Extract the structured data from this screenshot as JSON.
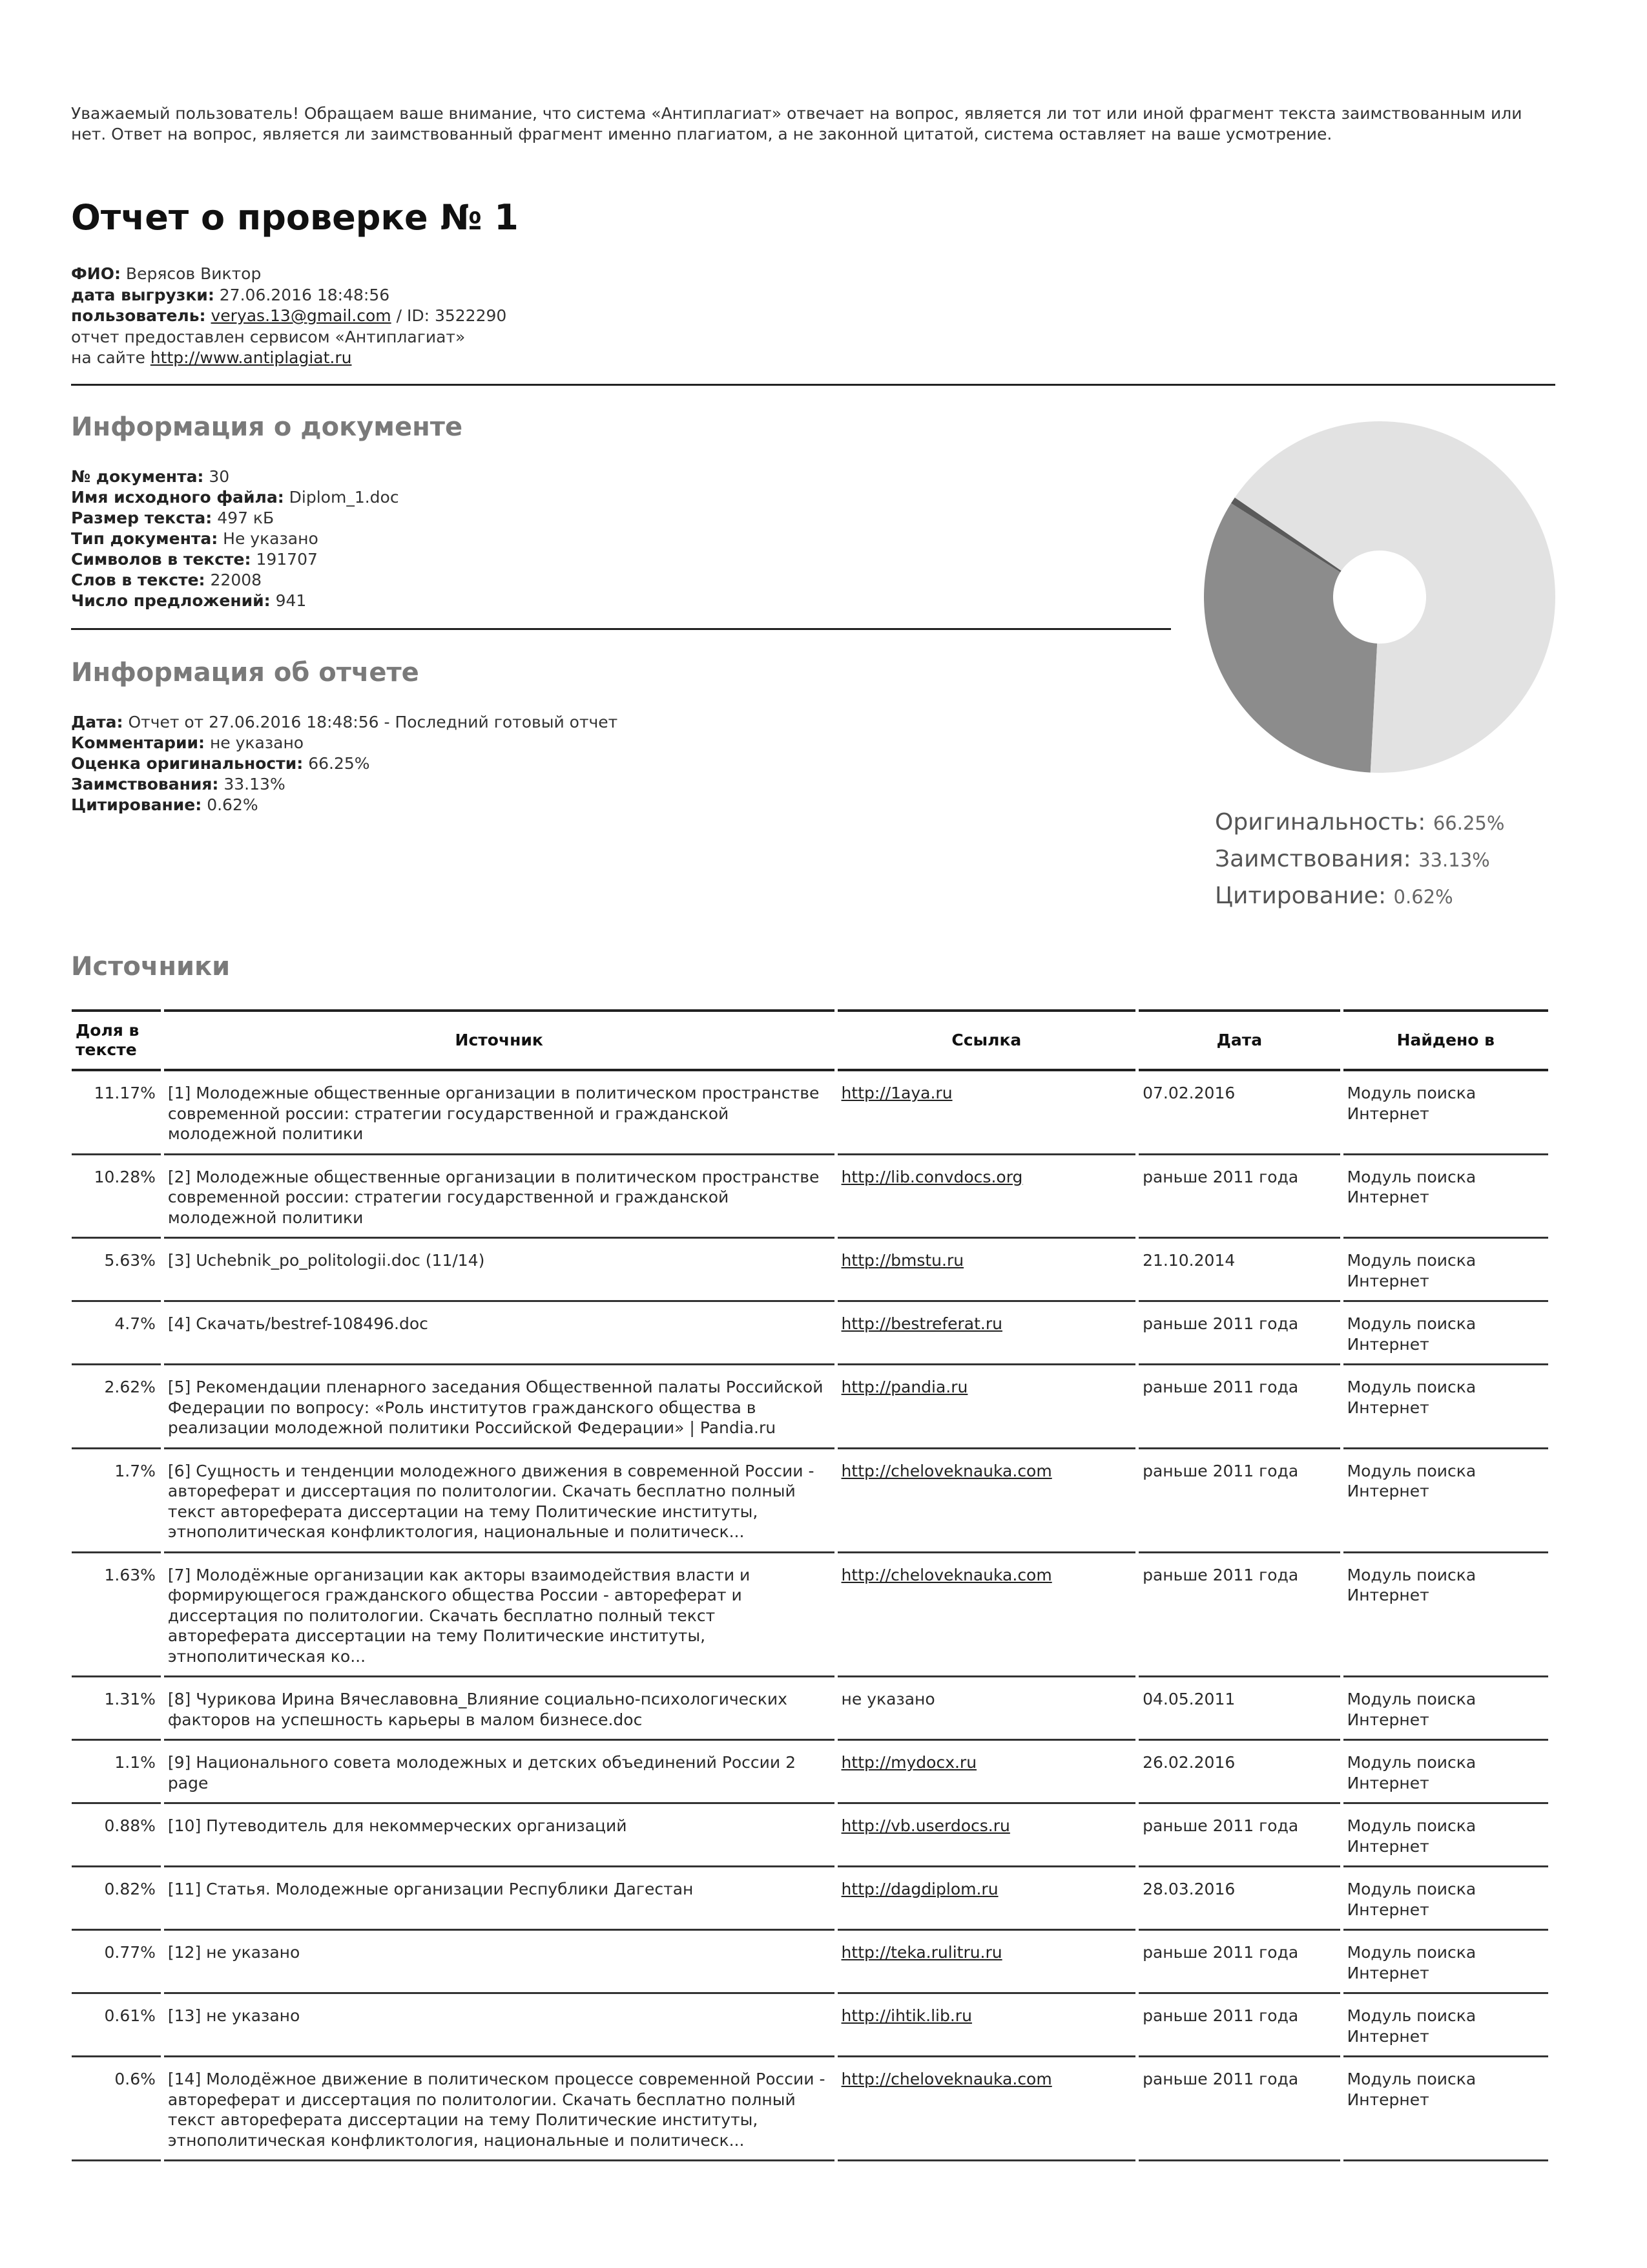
{
  "notice": "Уважаемый пользователь! Обращаем ваше внимание, что система «Антиплагиат» отвечает на вопрос, является ли тот или иной фрагмент текста заимствованным или нет. Ответ на вопрос, является ли заимствованный фрагмент именно плагиатом, а не законной цитатой, система оставляет на ваше усмотрение.",
  "title": "Отчет о проверке № 1",
  "meta": {
    "fio_label": "ФИО:",
    "fio": "Верясов Виктор",
    "upload_label": "дата выгрузки:",
    "upload": "27.06.2016 18:48:56",
    "user_label": "пользователь:",
    "user_email": "veryas.13@gmail.com",
    "user_id": "/ ID: 3522290",
    "provided": "отчет предоставлен сервисом «Антиплагиат»",
    "site_label": "на сайте",
    "site": "http://www.antiplagiat.ru"
  },
  "doc_info": {
    "heading": "Информация о документе",
    "rows": [
      {
        "label": "№ документа:",
        "value": "30"
      },
      {
        "label": "Имя исходного файла:",
        "value": "Diplom_1.doc"
      },
      {
        "label": "Размер текста:",
        "value": "497 кБ"
      },
      {
        "label": "Тип документа:",
        "value": "Не указано"
      },
      {
        "label": "Символов в тексте:",
        "value": "191707"
      },
      {
        "label": "Слов в тексте:",
        "value": "22008"
      },
      {
        "label": "Число предложений:",
        "value": "941"
      }
    ]
  },
  "report_info": {
    "heading": "Информация об отчете",
    "rows": [
      {
        "label": "Дата:",
        "value": "Отчет от 27.06.2016 18:48:56 - Последний готовый отчет"
      },
      {
        "label": "Комментарии:",
        "value": "не указано"
      },
      {
        "label": "Оценка оригинальности:",
        "value": "66.25%"
      },
      {
        "label": "Заимствования:",
        "value": "33.13%"
      },
      {
        "label": "Цитирование:",
        "value": "0.62%"
      }
    ]
  },
  "chart_data": {
    "type": "pie",
    "donut": true,
    "slices": [
      {
        "name": "Заимствования",
        "value": 33.13,
        "color": "#8c8c8c"
      },
      {
        "name": "Цитирование",
        "value": 0.62,
        "color": "#5a5a5a"
      },
      {
        "name": "Оригинальность",
        "value": 66.25,
        "color": "#e2e2e2"
      }
    ],
    "legend": [
      {
        "label": "Оригинальность:",
        "value": "66.25%"
      },
      {
        "label": "Заимствования:",
        "value": "33.13%"
      },
      {
        "label": "Цитирование:",
        "value": "0.62%"
      }
    ],
    "legend_placement": "bottom"
  },
  "sources": {
    "heading": "Источники",
    "columns": [
      "Доля в тексте",
      "Источник",
      "Ссылка",
      "Дата",
      "Найдено в"
    ],
    "rows": [
      {
        "share": "11.17%",
        "source": "[1] Молодежные общественные организации в политическом пространстве современной россии: стратегии государственной и гражданской молодежной политики",
        "link": "http://1aya.ru",
        "date": "07.02.2016",
        "found": "Модуль поиска Интернет"
      },
      {
        "share": "10.28%",
        "source": "[2] Молодежные общественные организации в политическом пространстве современной россии: стратегии государственной и гражданской молодежной политики",
        "link": "http://lib.convdocs.org",
        "date": "раньше 2011 года",
        "found": "Модуль поиска Интернет"
      },
      {
        "share": "5.63%",
        "source": "[3] Uchebnik_po_politologii.doc (11/14)",
        "link": "http://bmstu.ru",
        "date": "21.10.2014",
        "found": "Модуль поиска Интернет"
      },
      {
        "share": "4.7%",
        "source": "[4] Скачать/bestref-108496.doc",
        "link": "http://bestreferat.ru",
        "date": "раньше 2011 года",
        "found": "Модуль поиска Интернет"
      },
      {
        "share": "2.62%",
        "source": "[5] Рекомендации пленарного заседания Общественной палаты Российской Федерации по вопросу: «Роль институтов гражданского общества в реализации молодежной политики Российской Федерации» | Pandia.ru",
        "link": "http://pandia.ru",
        "date": "раньше 2011 года",
        "found": "Модуль поиска Интернет"
      },
      {
        "share": "1.7%",
        "source": "[6] Сущность и тенденции молодежного движения в современной России - автореферат и диссертация по политологии. Скачать бесплатно полный текст автореферата диссертации на тему Политические институты, этнополитическая конфликтология, национальные и политическ...",
        "link": "http://cheloveknauka.com",
        "date": "раньше 2011 года",
        "found": "Модуль поиска Интернет"
      },
      {
        "share": "1.63%",
        "source": "[7] Молодёжные организации как акторы взаимодействия власти и формирующегося гражданского общества России - автореферат и диссертация по политологии. Скачать бесплатно полный текст автореферата диссертации на тему Политические институты, этнополитическая ко...",
        "link": "http://cheloveknauka.com",
        "date": "раньше 2011 года",
        "found": "Модуль поиска Интернет"
      },
      {
        "share": "1.31%",
        "source": "[8] Чурикова Ирина Вячеславовна_Влияние социально-психологических факторов на успешность карьеры в малом бизнесе.doc",
        "link": "не указано",
        "date": "04.05.2011",
        "found": "Модуль поиска Интернет"
      },
      {
        "share": "1.1%",
        "source": "[9] Национального совета молодежных и детских объединений России 2 page",
        "link": "http://mydocx.ru",
        "date": "26.02.2016",
        "found": "Модуль поиска Интернет"
      },
      {
        "share": "0.88%",
        "source": "[10] Путеводитель для некоммерческих организаций",
        "link": "http://vb.userdocs.ru",
        "date": "раньше 2011 года",
        "found": "Модуль поиска Интернет"
      },
      {
        "share": "0.82%",
        "source": "[11] Статья. Молодежные организации Республики Дагестан",
        "link": "http://dagdiplom.ru",
        "date": "28.03.2016",
        "found": "Модуль поиска Интернет"
      },
      {
        "share": "0.77%",
        "source": "[12] не указано",
        "link": "http://teka.rulitru.ru",
        "date": "раньше 2011 года",
        "found": "Модуль поиска Интернет"
      },
      {
        "share": "0.61%",
        "source": "[13] не указано",
        "link": "http://ihtik.lib.ru",
        "date": "раньше 2011 года",
        "found": "Модуль поиска Интернет"
      },
      {
        "share": "0.6%",
        "source": "[14] Молодёжное движение в политическом процессе современной России - автореферат и диссертация по политологии. Скачать бесплатно полный текст автореферата диссертации на тему Политические институты, этнополитическая конфликтология, национальные и политическ...",
        "link": "http://cheloveknauka.com",
        "date": "раньше 2011 года",
        "found": "Модуль поиска Интернет"
      }
    ]
  }
}
